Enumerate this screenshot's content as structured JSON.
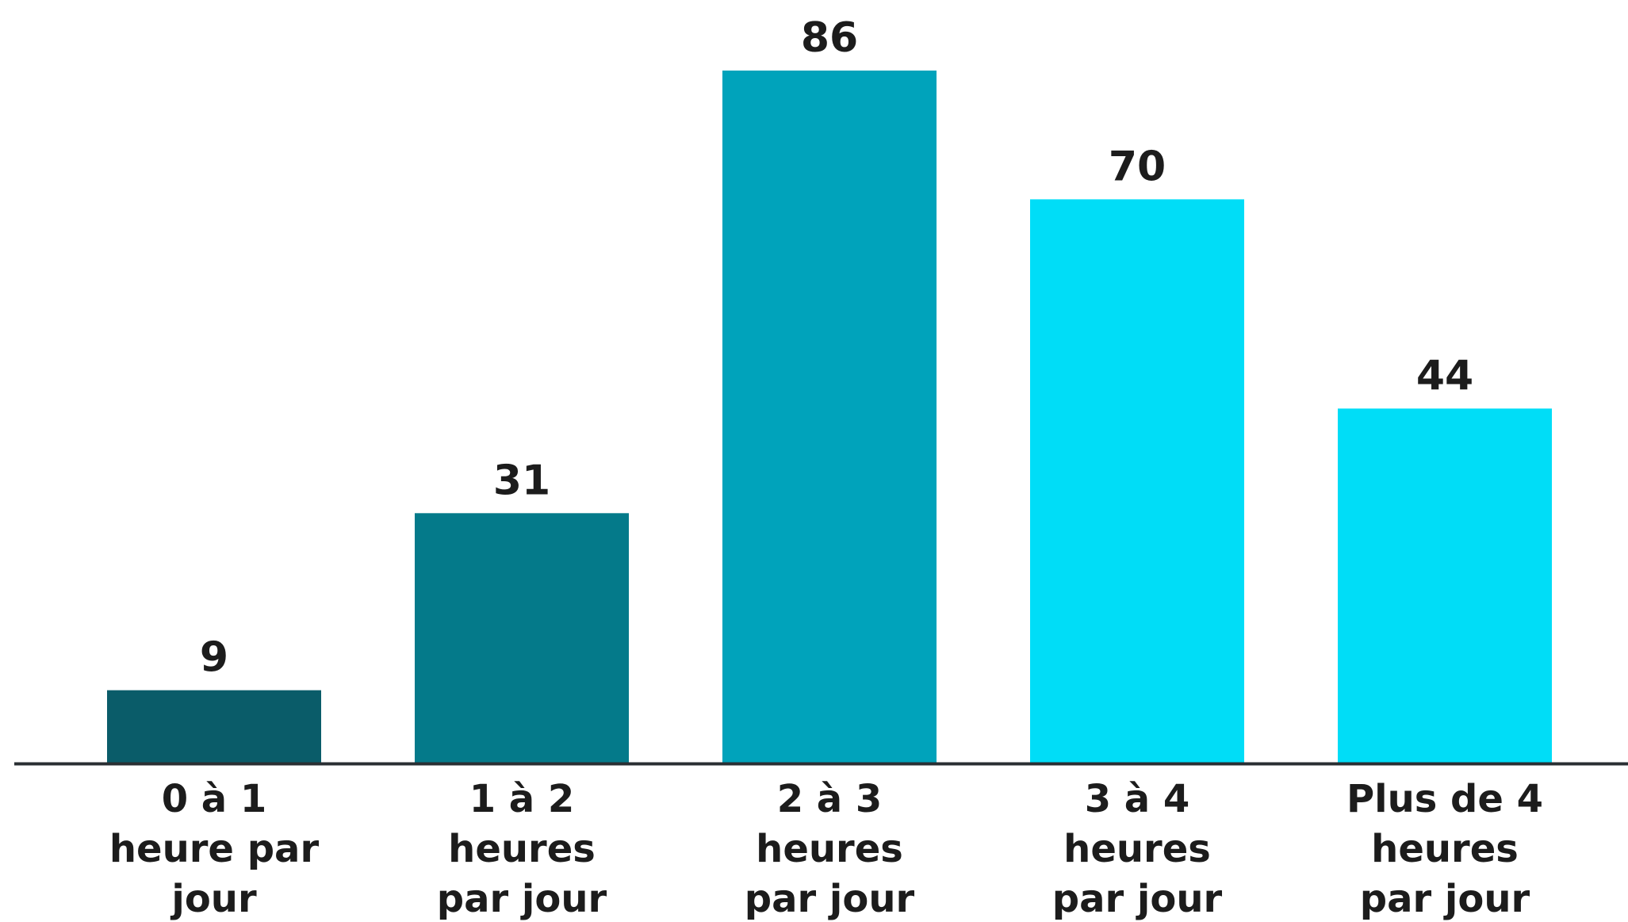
{
  "chart_data": {
    "type": "bar",
    "title": "",
    "xlabel": "",
    "ylabel": "",
    "ylim": [
      0,
      86
    ],
    "grid": false,
    "legend": "none",
    "categories": [
      [
        "0 à 1",
        "heure par",
        "jour"
      ],
      [
        "1 à 2",
        "heures",
        "par jour"
      ],
      [
        "2 à 3",
        "heures",
        "par jour"
      ],
      [
        "3 à 4",
        "heures",
        "par jour"
      ],
      [
        "Plus de 4",
        "heures",
        "par jour"
      ]
    ],
    "values": [
      9,
      31,
      86,
      70,
      44
    ],
    "data_labels": [
      "9",
      "31",
      "86",
      "70",
      "44"
    ],
    "colors": [
      "#0a5c69",
      "#047a8a",
      "#00a3bb",
      "#00ddf7",
      "#00ddf7"
    ],
    "axis_color": "#2a2f33"
  }
}
